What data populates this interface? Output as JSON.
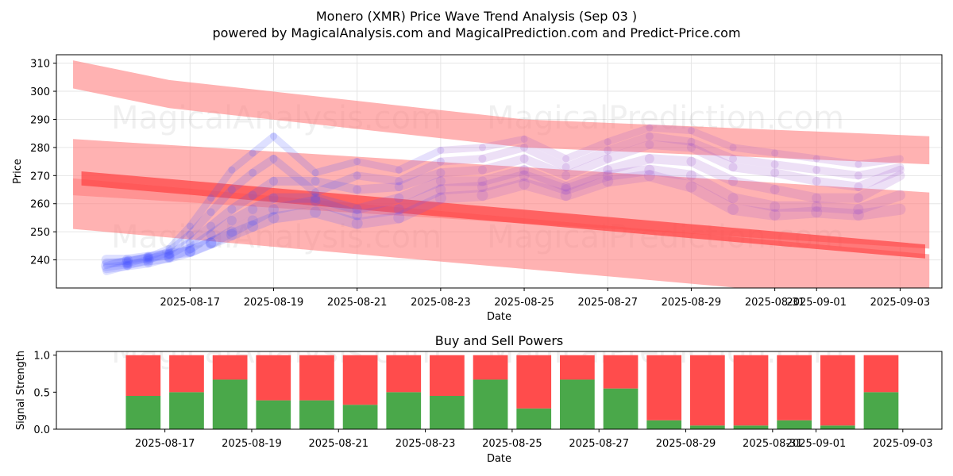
{
  "title": "Monero (XMR) Price Wave Trend Analysis (Sep 03 )",
  "subtitle": "powered by MagicalAnalysis.com and MagicalPrediction.com and Predict-Price.com",
  "watermarks": [
    "MagicalAnalysis.com",
    "MagicalPrediction.com"
  ],
  "colors": {
    "band": "#ff7f7f",
    "band_dark": "#ff4040",
    "wave_blue": "#4a55ff",
    "wave_purple": "#9955cc",
    "buy": "#4aa84a",
    "sell": "#ff4c4c"
  },
  "chart_data": [
    {
      "type": "line",
      "title": "",
      "xlabel": "Date",
      "ylabel": "Price",
      "ylim": [
        230,
        313
      ],
      "yticks": [
        240,
        250,
        260,
        270,
        280,
        290,
        300,
        310
      ],
      "xticks": [
        "2025-08-17",
        "2025-08-19",
        "2025-08-21",
        "2025-08-23",
        "2025-08-25",
        "2025-08-27",
        "2025-08-29",
        "2025-08-31",
        "2025-09-01",
        "2025-09-03"
      ],
      "xtick_days": [
        2,
        4,
        6,
        8,
        10,
        12,
        14,
        16,
        17,
        19
      ],
      "xlim_days": [
        -1.2,
        20.0
      ],
      "grid": true,
      "bands": [
        {
          "name": "upper",
          "x": [
            -0.8,
            1.5,
            10,
            19.7
          ],
          "y": [
            306,
            299,
            285,
            279
          ],
          "half_width": 5
        },
        {
          "name": "middle",
          "x": [
            -0.8,
            19.7
          ],
          "y": [
            273,
            254
          ],
          "half_width": 10
        },
        {
          "name": "lower",
          "x": [
            -0.8,
            19.7
          ],
          "y": [
            260,
            233
          ],
          "half_width": 9
        },
        {
          "name": "red-line",
          "x": [
            -0.6,
            19.6
          ],
          "y": [
            269,
            243
          ],
          "half_width": 2.5
        }
      ],
      "wave_days": [
        0,
        0.5,
        1,
        1.5,
        2,
        2.5,
        3,
        3.5,
        4,
        5,
        6,
        7,
        8,
        9,
        10,
        11,
        12,
        13,
        14,
        15,
        16,
        17,
        18,
        19
      ],
      "wave_series": [
        {
          "name": "wave-1",
          "values": [
            238,
            240,
            241,
            244,
            252,
            262,
            272,
            278,
            284,
            271,
            275,
            272,
            279,
            280,
            283,
            276,
            282,
            287,
            286,
            280,
            278,
            276,
            274,
            276
          ]
        },
        {
          "name": "wave-2",
          "values": [
            236,
            238,
            240,
            243,
            249,
            257,
            265,
            271,
            276,
            264,
            270,
            268,
            275,
            276,
            280,
            273,
            279,
            284,
            282,
            276,
            274,
            272,
            270,
            273
          ]
        },
        {
          "name": "wave-3",
          "values": [
            239,
            239,
            241,
            242,
            246,
            252,
            258,
            263,
            268,
            268,
            265,
            266,
            271,
            272,
            276,
            270,
            276,
            281,
            280,
            273,
            271,
            268,
            266,
            272
          ]
        },
        {
          "name": "wave-4",
          "values": [
            237,
            238,
            239,
            241,
            244,
            249,
            254,
            258,
            262,
            262,
            258,
            262,
            268,
            268,
            272,
            266,
            272,
            276,
            275,
            268,
            265,
            262,
            262,
            270
          ]
        },
        {
          "name": "wave-5",
          "values": [
            240,
            240,
            241,
            242,
            243,
            246,
            250,
            254,
            258,
            261,
            256,
            258,
            265,
            266,
            270,
            265,
            270,
            272,
            270,
            262,
            259,
            259,
            258,
            263
          ]
        },
        {
          "name": "wave-6",
          "values": [
            238,
            239,
            240,
            241,
            243,
            246,
            249,
            252,
            255,
            257,
            253,
            255,
            262,
            263,
            267,
            263,
            268,
            270,
            266,
            258,
            256,
            257,
            256,
            258
          ]
        }
      ]
    },
    {
      "type": "bar",
      "title": "Buy and Sell Powers",
      "xlabel": "Date",
      "ylabel": "Signal Strength",
      "ylim": [
        0,
        1.05
      ],
      "yticks": [
        0.0,
        0.5,
        1.0
      ],
      "xticks": [
        "2025-08-17",
        "2025-08-19",
        "2025-08-21",
        "2025-08-23",
        "2025-08-25",
        "2025-08-27",
        "2025-08-29",
        "2025-08-31",
        "2025-09-01",
        "2025-09-03"
      ],
      "xtick_days": [
        2,
        4,
        6,
        8,
        10,
        12,
        14,
        16,
        17,
        19
      ],
      "xlim_days": [
        -0.5,
        19.9
      ],
      "categories_days": [
        1.5,
        2.5,
        3.5,
        4.5,
        5.5,
        6.5,
        7.5,
        8.5,
        9.5,
        10.5,
        11.5,
        12.5,
        13.5,
        14.5,
        15.5,
        16.5,
        17.5,
        18.5
      ],
      "series": [
        {
          "name": "Buy",
          "values": [
            0.45,
            0.5,
            0.67,
            0.39,
            0.39,
            0.33,
            0.5,
            0.45,
            0.67,
            0.28,
            0.67,
            0.55,
            0.12,
            0.05,
            0.05,
            0.12,
            0.05,
            0.5
          ]
        },
        {
          "name": "Sell",
          "values": [
            0.55,
            0.5,
            0.33,
            0.61,
            0.61,
            0.67,
            0.5,
            0.55,
            0.33,
            0.72,
            0.33,
            0.45,
            0.88,
            0.95,
            0.95,
            0.88,
            0.95,
            0.5
          ]
        }
      ]
    }
  ]
}
